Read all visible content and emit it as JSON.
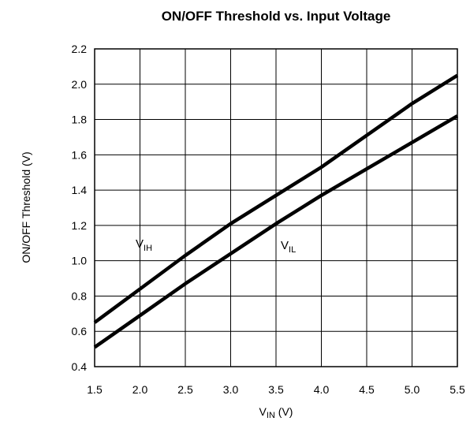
{
  "chart_data": {
    "type": "line",
    "title": "ON/OFF Threshold vs. Input Voltage",
    "xlabel": {
      "main": "V",
      "sub": "IN",
      "unit": " (V)"
    },
    "ylabel": "ON/OFF Threshold (V)",
    "xlim": [
      1.5,
      5.5
    ],
    "ylim": [
      0.4,
      2.2
    ],
    "xticks": [
      1.5,
      2.0,
      2.5,
      3.0,
      3.5,
      4.0,
      4.5,
      5.0,
      5.5
    ],
    "xtick_labels": [
      "1.5",
      "2.0",
      "2.5",
      "3.0",
      "3.5",
      "4.0",
      "4.5",
      "5.0",
      "5.5"
    ],
    "yticks": [
      0.4,
      0.6,
      0.8,
      1.0,
      1.2,
      1.4,
      1.6,
      1.8,
      2.0,
      2.2
    ],
    "ytick_labels": [
      "0.4",
      "0.6",
      "0.8",
      "1.0",
      "1.2",
      "1.4",
      "1.6",
      "1.8",
      "2.0",
      "2.2"
    ],
    "grid": true,
    "series": [
      {
        "label": {
          "main": "V",
          "sub": "IH"
        },
        "color": "#000000",
        "x": [
          1.5,
          2.0,
          2.5,
          3.0,
          3.5,
          4.0,
          4.5,
          5.0,
          5.5
        ],
        "y": [
          0.65,
          0.84,
          1.03,
          1.21,
          1.37,
          1.53,
          1.71,
          1.89,
          2.05
        ]
      },
      {
        "label": {
          "main": "V",
          "sub": "IL"
        },
        "color": "#000000",
        "x": [
          1.5,
          2.0,
          2.5,
          3.0,
          3.5,
          4.0,
          4.5,
          5.0,
          5.5
        ],
        "y": [
          0.51,
          0.69,
          0.87,
          1.04,
          1.21,
          1.37,
          1.52,
          1.67,
          1.82
        ]
      }
    ]
  }
}
